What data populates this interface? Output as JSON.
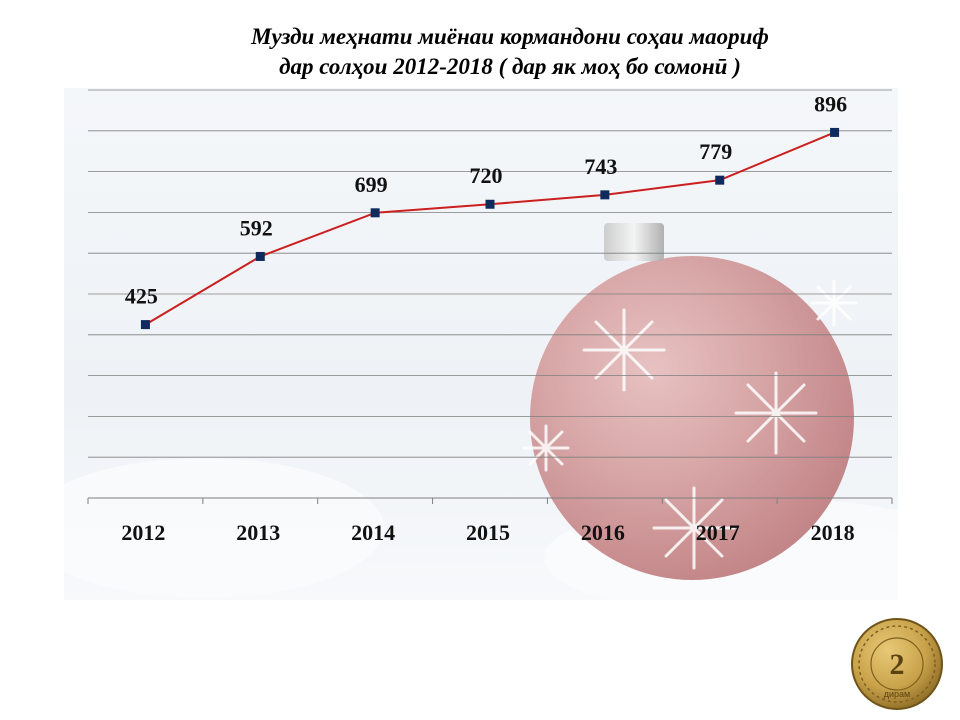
{
  "title_line1": "Музди меҳнати миёнаи кормандони соҳаи маориф",
  "title_line2": "дар солҳои 2012-2018 ( дар як моҳ бо сомонӣ )",
  "chart_data": {
    "type": "line",
    "categories": [
      "2012",
      "2013",
      "2014",
      "2015",
      "2016",
      "2017",
      "2018"
    ],
    "values": [
      425,
      592,
      699,
      720,
      743,
      779,
      896
    ],
    "title": "Музди меҳнати миёнаи кормандони соҳаи маориф дар солҳои 2012-2018 ( дар як моҳ бо сомонӣ )",
    "xlabel": "",
    "ylabel": "",
    "ylim": [
      0,
      1000
    ],
    "grid": true,
    "legend": "none",
    "line_color": "#cc1f1f",
    "marker_color": "#0f2a5c"
  },
  "coin": {
    "value": "2",
    "text": "дирам"
  }
}
